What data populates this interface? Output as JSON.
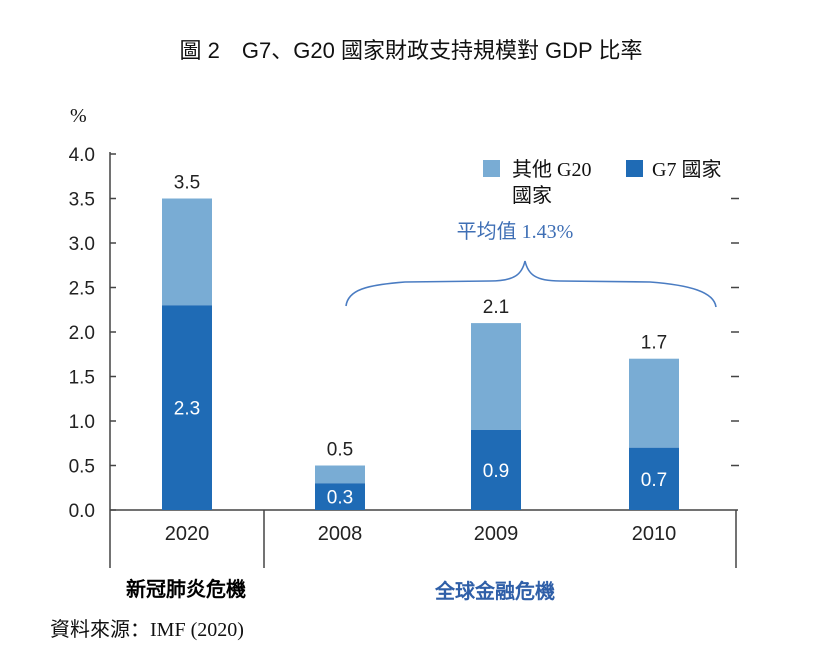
{
  "figure_title": "圖 2　G7、G20 國家財政支持規模對 GDP 比率",
  "y_unit": "%",
  "source_note": "資料來源：IMF (2020)",
  "average_label": "平均值 1.43%",
  "groups": [
    {
      "label": "新冠肺炎危機",
      "color": "#000000"
    },
    {
      "label": "全球金融危機",
      "color": "#2f5fa8"
    }
  ],
  "colors": {
    "g7": "#1f6bb5",
    "other": "#79acd4",
    "brace": "#4a7cc2",
    "axis": "#444444"
  },
  "chart_data": {
    "type": "bar",
    "stacked": true,
    "categories": [
      "2020",
      "2008",
      "2009",
      "2010"
    ],
    "series": [
      {
        "name": "G7 國家",
        "values": [
          2.3,
          0.3,
          0.9,
          0.7
        ],
        "labels": [
          "2.3",
          "0.3",
          "0.9",
          "0.7"
        ]
      },
      {
        "name": "其他 G20 國家",
        "values": [
          1.2,
          0.2,
          1.2,
          1.0
        ]
      }
    ],
    "totals": [
      3.5,
      0.5,
      2.1,
      1.7
    ],
    "total_labels": [
      "3.5",
      "0.5",
      "2.1",
      "1.7"
    ],
    "yticks": [
      "0.0",
      "0.5",
      "1.0",
      "1.5",
      "2.0",
      "2.5",
      "3.0",
      "3.5",
      "4.0"
    ],
    "ylim": [
      0,
      4.0
    ],
    "legend_position": "top-right",
    "grid": false
  }
}
